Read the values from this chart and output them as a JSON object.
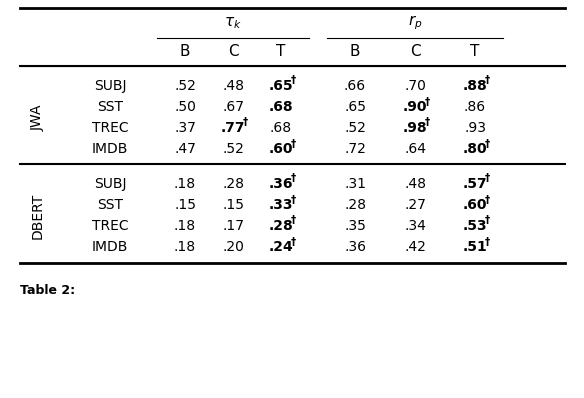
{
  "col_headers": [
    "B",
    "C",
    "T",
    "B",
    "C",
    "T"
  ],
  "cell_data": {
    "JWA": {
      "SUBJ": [
        ".52",
        ".48",
        ".65",
        ".66",
        ".70",
        ".88"
      ],
      "SST": [
        ".50",
        ".67",
        ".68",
        ".65",
        ".90",
        ".86"
      ],
      "TREC": [
        ".37",
        ".77",
        ".68",
        ".52",
        ".98",
        ".93"
      ],
      "IMDB": [
        ".47",
        ".52",
        ".60",
        ".72",
        ".64",
        ".80"
      ]
    },
    "DBERT": {
      "SUBJ": [
        ".18",
        ".28",
        ".36",
        ".31",
        ".48",
        ".57"
      ],
      "SST": [
        ".15",
        ".15",
        ".33",
        ".28",
        ".27",
        ".60"
      ],
      "TREC": [
        ".18",
        ".17",
        ".28",
        ".35",
        ".34",
        ".53"
      ],
      "IMDB": [
        ".18",
        ".20",
        ".24",
        ".36",
        ".42",
        ".51"
      ]
    }
  },
  "dagger_cells": {
    "JWA": {
      "SUBJ": [
        false,
        false,
        true,
        false,
        false,
        true
      ],
      "SST": [
        false,
        false,
        false,
        false,
        true,
        false
      ],
      "TREC": [
        false,
        true,
        false,
        false,
        true,
        false
      ],
      "IMDB": [
        false,
        false,
        true,
        false,
        false,
        true
      ]
    },
    "DBERT": {
      "SUBJ": [
        false,
        false,
        true,
        false,
        false,
        true
      ],
      "SST": [
        false,
        false,
        true,
        false,
        false,
        true
      ],
      "TREC": [
        false,
        false,
        true,
        false,
        false,
        true
      ],
      "IMDB": [
        false,
        false,
        true,
        false,
        false,
        true
      ]
    }
  },
  "bold_cells": {
    "JWA": {
      "SUBJ": [
        false,
        false,
        true,
        false,
        false,
        true
      ],
      "SST": [
        false,
        false,
        true,
        false,
        true,
        false
      ],
      "TREC": [
        false,
        true,
        false,
        false,
        true,
        false
      ],
      "IMDB": [
        false,
        false,
        true,
        false,
        false,
        true
      ]
    },
    "DBERT": {
      "SUBJ": [
        false,
        false,
        true,
        false,
        false,
        true
      ],
      "SST": [
        false,
        false,
        true,
        false,
        false,
        true
      ],
      "TREC": [
        false,
        false,
        true,
        false,
        false,
        true
      ],
      "IMDB": [
        false,
        false,
        true,
        false,
        false,
        true
      ]
    }
  },
  "groups": [
    "JWA",
    "DBERT"
  ],
  "datasets": [
    "SUBJ",
    "SST",
    "TREC",
    "IMDB"
  ],
  "figsize": [
    5.84,
    3.98
  ],
  "dpi": 100
}
